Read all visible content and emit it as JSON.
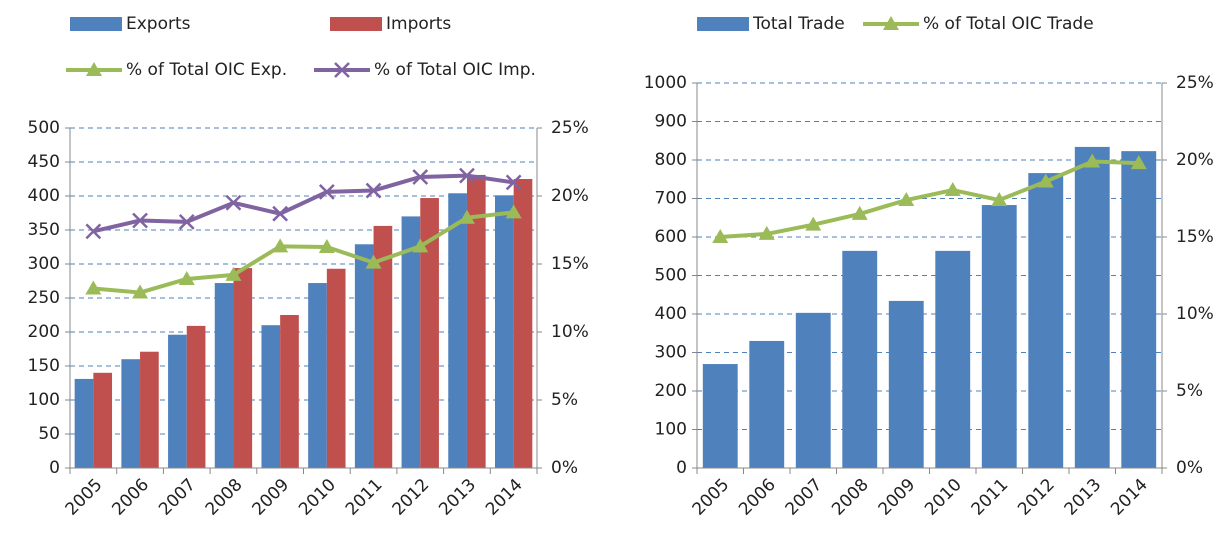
{
  "chart_data": [
    {
      "type": "combo",
      "categories": [
        "2005",
        "2006",
        "2007",
        "2008",
        "2009",
        "2010",
        "2011",
        "2012",
        "2013",
        "2014"
      ],
      "series": [
        {
          "name": "Exports",
          "type": "bar",
          "color": "#4f81bd",
          "values": [
            131,
            160,
            196,
            272,
            210,
            272,
            329,
            370,
            404,
            401
          ]
        },
        {
          "name": "Imports",
          "type": "bar",
          "color": "#c0504d",
          "values": [
            140,
            171,
            209,
            294,
            225,
            293,
            356,
            397,
            431,
            425
          ]
        },
        {
          "name": "% of Total OIC Exp.",
          "type": "line",
          "marker": "triangle",
          "axis": "y2",
          "color": "#9bbb59",
          "values": [
            13.2,
            12.9,
            13.9,
            14.2,
            16.3,
            16.25,
            15.1,
            16.3,
            18.4,
            18.8
          ]
        },
        {
          "name": "% of Total OIC Imp.",
          "type": "line",
          "marker": "x",
          "axis": "y2",
          "color": "#8064a2",
          "values": [
            17.4,
            18.2,
            18.1,
            19.5,
            18.7,
            20.3,
            20.4,
            21.4,
            21.5,
            21.0
          ]
        }
      ],
      "ylim": [
        0,
        500
      ],
      "yticks": [
        0,
        50,
        100,
        150,
        200,
        250,
        300,
        350,
        400,
        450,
        500
      ],
      "y2lim": [
        0,
        25
      ],
      "y2ticks": [
        {
          "value": 0,
          "label": "0%"
        },
        {
          "value": 5,
          "label": "5%"
        },
        {
          "value": 10,
          "label": "10%"
        },
        {
          "value": 15,
          "label": "15%"
        },
        {
          "value": 20,
          "label": "20%"
        },
        {
          "value": 25,
          "label": "25%"
        }
      ],
      "grid": true
    },
    {
      "type": "combo",
      "categories": [
        "2005",
        "2006",
        "2007",
        "2008",
        "2009",
        "2010",
        "2011",
        "2012",
        "2013",
        "2014"
      ],
      "series": [
        {
          "name": "Total Trade",
          "type": "bar",
          "color": "#4f81bd",
          "values": [
            270,
            330,
            403,
            564,
            434,
            564,
            683,
            766,
            834,
            823
          ]
        },
        {
          "name": "% of Total OIC Trade",
          "type": "line",
          "marker": "triangle",
          "axis": "y2",
          "color": "#9bbb59",
          "values": [
            15.0,
            15.2,
            15.8,
            16.5,
            17.4,
            18.05,
            17.4,
            18.6,
            19.9,
            19.8
          ]
        }
      ],
      "ylim": [
        0,
        1000
      ],
      "yticks": [
        0,
        100,
        200,
        300,
        400,
        500,
        600,
        700,
        800,
        900,
        1000
      ],
      "y2lim": [
        0,
        25
      ],
      "y2ticks": [
        {
          "value": 0,
          "label": "0%"
        },
        {
          "value": 5,
          "label": "5%"
        },
        {
          "value": 10,
          "label": "10%"
        },
        {
          "value": 15,
          "label": "15%"
        },
        {
          "value": 20,
          "label": "20%"
        },
        {
          "value": 25,
          "label": "25%"
        }
      ],
      "grid": true
    }
  ]
}
